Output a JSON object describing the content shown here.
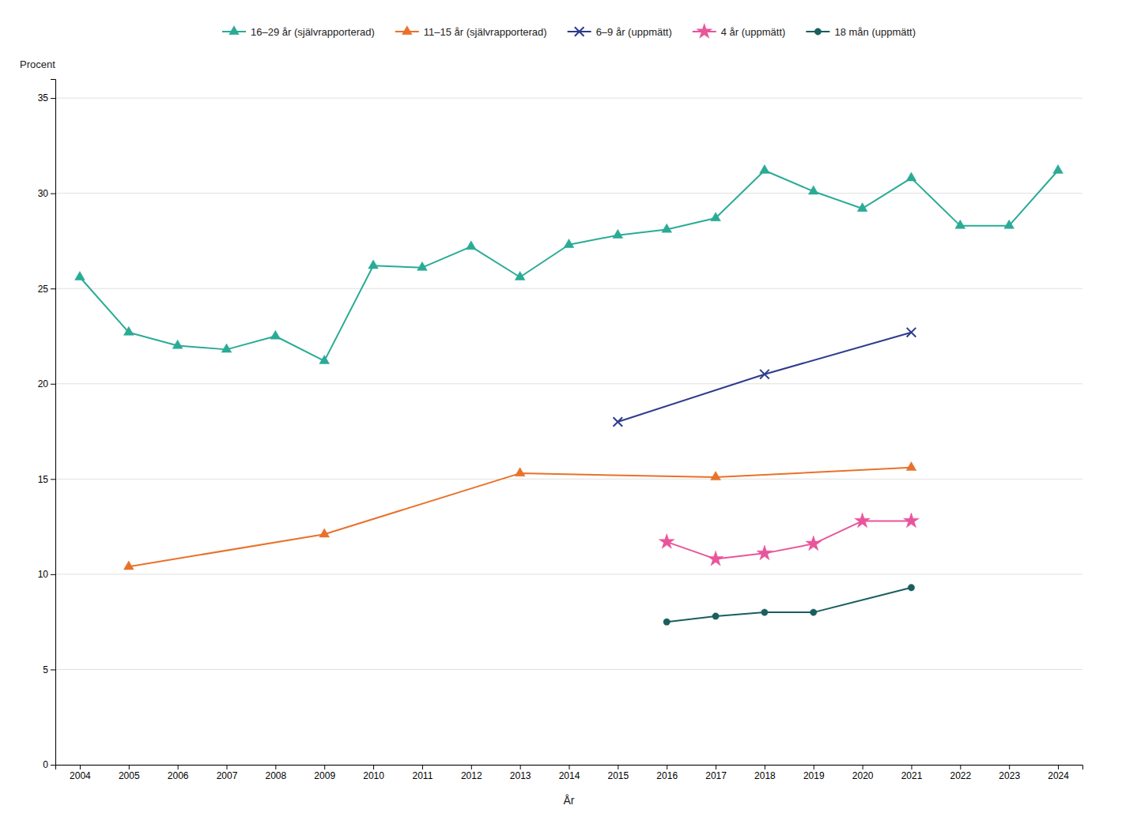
{
  "chart_data": {
    "type": "line",
    "xlabel": "År",
    "ylabel": "Procent",
    "series": [
      {
        "name": "16–29 år (självrapporterad)",
        "color": "#2aab96",
        "marker": "triangle",
        "x": [
          2004,
          2005,
          2006,
          2007,
          2008,
          2009,
          2010,
          2011,
          2012,
          2013,
          2014,
          2015,
          2016,
          2017,
          2018,
          2019,
          2020,
          2021,
          2022,
          2023,
          2024
        ],
        "values": [
          25.6,
          22.7,
          22.0,
          21.8,
          22.5,
          21.2,
          26.2,
          26.1,
          27.2,
          25.6,
          27.3,
          27.8,
          28.1,
          28.7,
          31.2,
          30.1,
          29.2,
          30.8,
          28.3,
          28.3,
          31.2
        ]
      },
      {
        "name": "11–15 år (självrapporterad)",
        "color": "#e8722a",
        "marker": "triangle",
        "x": [
          2005,
          2009,
          2013,
          2017,
          2021
        ],
        "values": [
          10.4,
          12.1,
          15.3,
          15.1,
          15.6
        ]
      },
      {
        "name": "6–9 år (uppmätt)",
        "color": "#2e3a8c",
        "marker": "x",
        "x": [
          2015,
          2018,
          2021
        ],
        "values": [
          18.0,
          20.5,
          22.7
        ]
      },
      {
        "name": "4 år (uppmätt)",
        "color": "#e8559a",
        "marker": "star",
        "x": [
          2016,
          2017,
          2018,
          2019,
          2020,
          2021
        ],
        "values": [
          11.7,
          10.8,
          11.1,
          11.6,
          12.8,
          12.8
        ]
      },
      {
        "name": "18 mån (uppmätt)",
        "color": "#1a5e5e",
        "marker": "circle",
        "x": [
          2016,
          2017,
          2018,
          2019,
          2021
        ],
        "values": [
          7.5,
          7.8,
          8.0,
          8.0,
          9.3
        ]
      }
    ],
    "xlim": [
      2003.5,
      2024.5
    ],
    "xticks": [
      2004,
      2005,
      2006,
      2007,
      2008,
      2009,
      2010,
      2011,
      2012,
      2013,
      2014,
      2015,
      2016,
      2017,
      2018,
      2019,
      2020,
      2021,
      2022,
      2023,
      2024
    ],
    "ylim": [
      0,
      36
    ],
    "yticks": [
      0,
      5,
      10,
      15,
      20,
      25,
      30,
      35
    ],
    "grid": "y",
    "legend": "top"
  }
}
